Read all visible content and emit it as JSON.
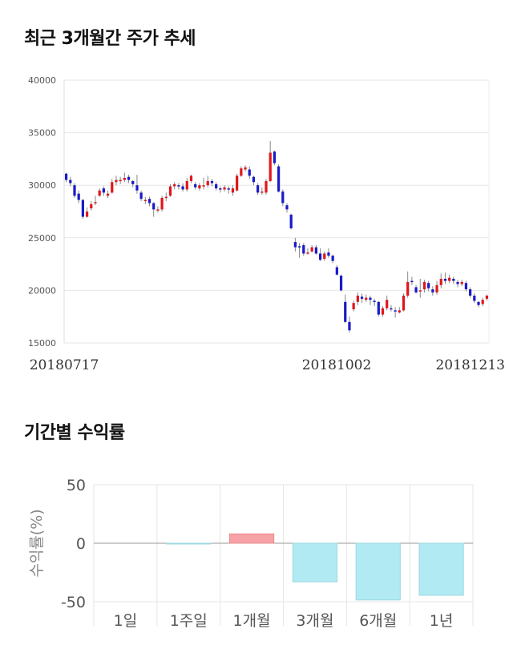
{
  "stock_section": {
    "title": "최근 3개월간 주가 추세"
  },
  "returns_section": {
    "title": "기간별 수익률"
  },
  "chart_data": [
    {
      "type": "candlestick",
      "title": "최근 3개월간 주가 추세",
      "xlabel": "",
      "ylabel": "",
      "ylim": [
        15000,
        40000
      ],
      "y_ticks": [
        40000,
        35000,
        30000,
        25000,
        20000,
        15000
      ],
      "x_tick_labels": [
        "20180717",
        "20181002",
        "20181213"
      ],
      "grid": true,
      "colors": {
        "up": "#e0171b",
        "down": "#1a1ac8",
        "wick": "#888888",
        "grid": "#e6e6e6"
      },
      "candles": [
        [
          31100,
          30500,
          31200,
          30300
        ],
        [
          30500,
          30200,
          30800,
          29900
        ],
        [
          30000,
          29000,
          30200,
          28800
        ],
        [
          29200,
          28600,
          29500,
          28300
        ],
        [
          28600,
          27000,
          28700,
          26800
        ],
        [
          27000,
          27500,
          27900,
          26900
        ],
        [
          27800,
          28200,
          28500,
          27600
        ],
        [
          28300,
          28400,
          29000,
          28100
        ],
        [
          29000,
          29500,
          29700,
          28900
        ],
        [
          29700,
          29300,
          29900,
          29000
        ],
        [
          29000,
          29200,
          29500,
          28800
        ],
        [
          29300,
          30300,
          30600,
          29200
        ],
        [
          30300,
          30500,
          30900,
          30000
        ],
        [
          30400,
          30500,
          30800,
          30100
        ],
        [
          30500,
          30700,
          31200,
          30300
        ],
        [
          30800,
          30500,
          31000,
          30200
        ],
        [
          30400,
          30100,
          30500,
          29800
        ],
        [
          30000,
          29500,
          31000,
          29200
        ],
        [
          29300,
          28700,
          29500,
          28500
        ],
        [
          28500,
          28600,
          28900,
          28200
        ],
        [
          28700,
          28300,
          28900,
          28000
        ],
        [
          28300,
          27700,
          28400,
          27000
        ],
        [
          27600,
          27700,
          28000,
          27400
        ],
        [
          27700,
          28800,
          29000,
          27500
        ],
        [
          28800,
          28900,
          29300,
          28500
        ],
        [
          29000,
          29900,
          30100,
          28900
        ],
        [
          29900,
          30100,
          30300,
          29600
        ],
        [
          30000,
          29900,
          30200,
          29600
        ],
        [
          29900,
          29600,
          30200,
          29400
        ],
        [
          29600,
          30400,
          30700,
          29400
        ],
        [
          30400,
          30900,
          31000,
          30200
        ],
        [
          30100,
          29800,
          30300,
          29600
        ],
        [
          29700,
          30000,
          30200,
          29500
        ],
        [
          29900,
          30000,
          30700,
          29600
        ],
        [
          30000,
          30400,
          30900,
          29800
        ],
        [
          30400,
          30200,
          30600,
          29900
        ],
        [
          30100,
          29700,
          30300,
          29500
        ],
        [
          29700,
          29600,
          29900,
          29300
        ],
        [
          29600,
          29800,
          30000,
          29400
        ],
        [
          29700,
          29600,
          29900,
          29200
        ],
        [
          29300,
          29700,
          30000,
          29000
        ],
        [
          29500,
          30900,
          31100,
          29400
        ],
        [
          30900,
          31600,
          31800,
          30800
        ],
        [
          31500,
          31700,
          31900,
          31300
        ],
        [
          31500,
          30900,
          31800,
          30600
        ],
        [
          30800,
          30300,
          30900,
          30000
        ],
        [
          30000,
          29300,
          30200,
          29100
        ],
        [
          29300,
          29400,
          29800,
          29100
        ],
        [
          29300,
          30400,
          30600,
          29100
        ],
        [
          30400,
          33100,
          34200,
          30300
        ],
        [
          33200,
          32100,
          33300,
          31900
        ],
        [
          31800,
          29400,
          32000,
          29300
        ],
        [
          29400,
          28300,
          29600,
          28000
        ],
        [
          28100,
          27700,
          28300,
          27400
        ],
        [
          27200,
          25900,
          27300,
          25800
        ],
        [
          24600,
          24100,
          25000,
          23700
        ],
        [
          24200,
          24100,
          24500,
          23100
        ],
        [
          24300,
          23500,
          24500,
          23300
        ],
        [
          23500,
          23600,
          24000,
          23400
        ],
        [
          23700,
          24100,
          24300,
          23600
        ],
        [
          24100,
          23500,
          24300,
          23400
        ],
        [
          23500,
          22900,
          24000,
          22800
        ],
        [
          23000,
          23500,
          23700,
          22800
        ],
        [
          23600,
          23300,
          24000,
          23100
        ],
        [
          23300,
          22800,
          23400,
          22600
        ],
        [
          22200,
          21500,
          22400,
          21400
        ],
        [
          21400,
          20000,
          21500,
          19900
        ],
        [
          18900,
          17000,
          19600,
          16900
        ],
        [
          17000,
          16200,
          17500,
          16000
        ],
        [
          18200,
          18800,
          19000,
          18000
        ],
        [
          18900,
          19500,
          19800,
          18600
        ],
        [
          19400,
          19200,
          19700,
          18800
        ],
        [
          19100,
          19300,
          19600,
          18900
        ],
        [
          19300,
          19100,
          19500,
          18600
        ],
        [
          19000,
          18900,
          19200,
          18500
        ],
        [
          18900,
          17700,
          19000,
          17500
        ],
        [
          17700,
          18300,
          18500,
          17500
        ],
        [
          18300,
          19100,
          19500,
          18100
        ],
        [
          18300,
          18200,
          18600,
          18000
        ],
        [
          18100,
          18000,
          18400,
          17400
        ],
        [
          17900,
          18100,
          18400,
          17800
        ],
        [
          18100,
          19500,
          19700,
          18000
        ],
        [
          19500,
          20800,
          21800,
          19300
        ],
        [
          20900,
          20800,
          21300,
          20500
        ],
        [
          20300,
          19800,
          20500,
          19700
        ],
        [
          19900,
          20000,
          21100,
          19300
        ],
        [
          20100,
          20800,
          21000,
          19800
        ],
        [
          20700,
          20200,
          20900,
          19900
        ],
        [
          20100,
          19800,
          20400,
          19500
        ],
        [
          19800,
          20500,
          20900,
          19600
        ],
        [
          20500,
          21100,
          21600,
          20200
        ],
        [
          21100,
          20900,
          21700,
          20600
        ],
        [
          20900,
          21200,
          21500,
          20700
        ],
        [
          21100,
          20900,
          21300,
          20600
        ],
        [
          20800,
          20600,
          21000,
          20300
        ],
        [
          20600,
          20800,
          21000,
          20400
        ],
        [
          20700,
          20100,
          20900,
          19900
        ],
        [
          20100,
          19500,
          20300,
          19300
        ],
        [
          19500,
          19000,
          19700,
          18800
        ],
        [
          18900,
          18600,
          19000,
          18400
        ],
        [
          18700,
          19100,
          19300,
          18500
        ],
        [
          19200,
          19500,
          19600,
          19000
        ]
      ]
    },
    {
      "type": "bar",
      "title": "기간별 수익률",
      "xlabel": "",
      "ylabel": "수익률(%)",
      "ylim": [
        -50,
        50
      ],
      "y_ticks": [
        50,
        0,
        -50
      ],
      "categories": [
        "1일",
        "1주일",
        "1개월",
        "3개월",
        "6개월",
        "1년"
      ],
      "values": [
        0.0,
        -0.5,
        8.0,
        -33.0,
        -48.5,
        -44.5
      ],
      "grid": true,
      "colors": {
        "positive": "#f6a2a6",
        "positive_edge": "#ea8d92",
        "negative": "#b1eaf2",
        "negative_edge": "#9cd8e2",
        "grid": "#e6e6e6",
        "zero": "#9a9a9a"
      }
    }
  ]
}
